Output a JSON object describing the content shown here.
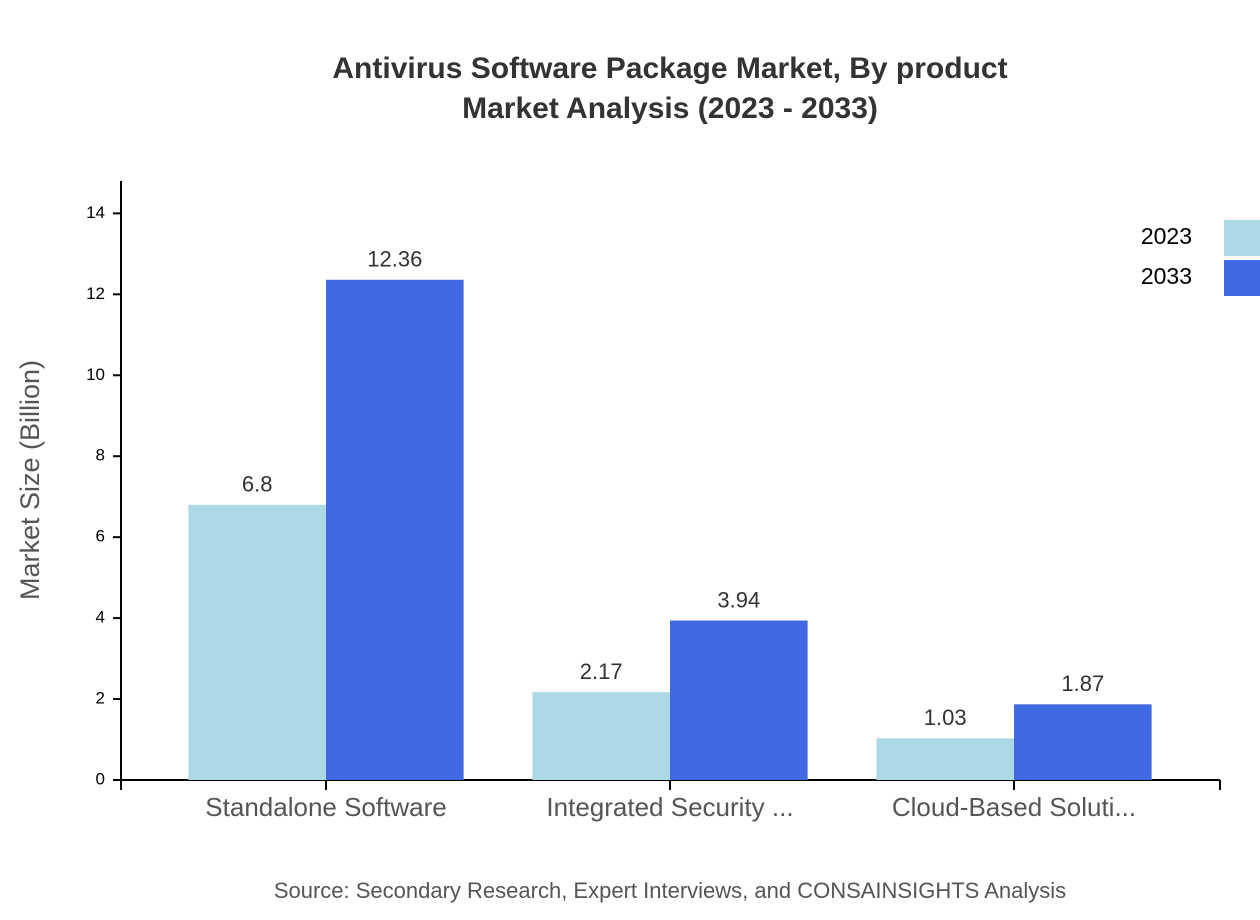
{
  "chart_data": {
    "type": "bar",
    "title": "Antivirus Software Package Market, By product",
    "subtitle": "Market Analysis (2023 - 2033)",
    "y_label": "Market Size (Billion)",
    "source": "Source: Secondary Research, Expert Interviews, and CONSAINSIGHTS Analysis",
    "categories": [
      "Standalone Software",
      "Integrated Security ...",
      "Cloud-Based Soluti..."
    ],
    "series": [
      {
        "name": "2023",
        "color": "#add8e6",
        "values": [
          6.8,
          2.17,
          1.03
        ]
      },
      {
        "name": "2033",
        "color": "#4169e1",
        "values": [
          12.36,
          3.94,
          1.87
        ]
      }
    ],
    "ylim": [
      0,
      14.8
    ],
    "yticks": [
      0,
      2,
      4,
      6,
      8,
      10,
      12,
      14
    ]
  }
}
